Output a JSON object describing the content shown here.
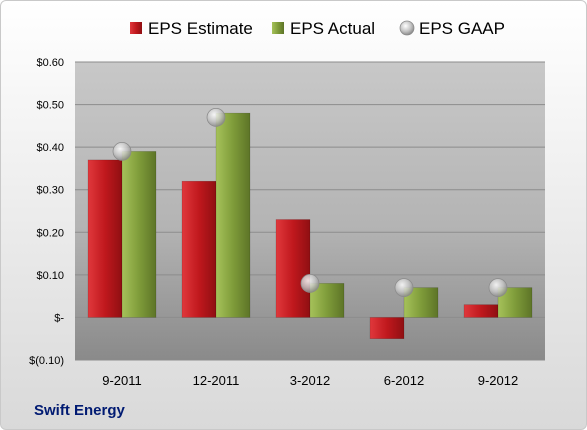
{
  "chart_data": {
    "type": "bar",
    "categories": [
      "9-2011",
      "12-2011",
      "3-2012",
      "6-2012",
      "9-2012"
    ],
    "series": [
      {
        "name": "EPS Estimate",
        "kind": "bar",
        "color": "#c0181d",
        "values": [
          0.37,
          0.32,
          0.23,
          -0.05,
          0.03
        ]
      },
      {
        "name": "EPS Actual",
        "kind": "bar",
        "color": "#7f9c3a",
        "values": [
          0.39,
          0.48,
          0.08,
          0.07,
          0.07
        ]
      },
      {
        "name": "EPS GAAP",
        "kind": "marker",
        "color": "#b8b8b8",
        "values": [
          0.39,
          0.47,
          0.08,
          0.07,
          0.07
        ]
      }
    ],
    "ylim": [
      -0.1,
      0.6
    ],
    "yticks": [
      -0.1,
      0.0,
      0.1,
      0.2,
      0.3,
      0.4,
      0.5,
      0.6
    ],
    "ytick_labels": [
      "$(0.10)",
      "$-",
      "$0.10",
      "$0.20",
      "$0.30",
      "$0.40",
      "$0.50",
      "$0.60"
    ],
    "grid": true,
    "legend_position": "top"
  },
  "footer": {
    "company": "Swift Energy"
  }
}
